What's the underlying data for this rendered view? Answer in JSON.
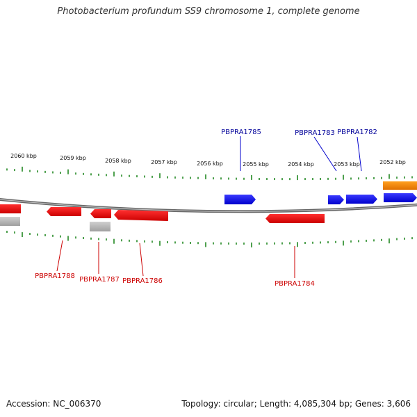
{
  "title": "Photobacterium profundum SS9 chromosome 1, complete genome",
  "footer": {
    "accession": "Accession: NC_006370",
    "summary": "Topology: circular; Length: 4,085,304 bp; Genes: 3,606"
  },
  "colors": {
    "forward": "#0000ee",
    "reverse": "#ee0000",
    "pseudo": "#bbbbbb",
    "rna": "#ff8800",
    "backbone": "#777777",
    "ticks": "#228822",
    "forward_label": "#000099",
    "reverse_label": "#cc0000"
  },
  "scale_labels": [
    "2060 kbp",
    "2059 kbp",
    "2058 kbp",
    "2057 kbp",
    "2056 kbp",
    "2055 kbp",
    "2054 kbp",
    "2053 kbp",
    "2052 kbp"
  ],
  "forward_genes": [
    {
      "id": "g1785",
      "label": "PBPRA1785",
      "strand": "+",
      "color": "blue"
    },
    {
      "id": "g1783",
      "label": "PBPRA1783",
      "strand": "+",
      "color": "blue"
    },
    {
      "id": "g1782",
      "label": "PBPRA1782",
      "strand": "+",
      "color": "blue"
    },
    {
      "id": "g_edge_fwd",
      "label": "",
      "strand": "+",
      "color": "blue"
    },
    {
      "id": "g_rna",
      "label": "",
      "strand": "+",
      "color": "orange"
    }
  ],
  "reverse_genes": [
    {
      "id": "g_edge_rev",
      "label": "",
      "strand": "-",
      "color": "red"
    },
    {
      "id": "g1788",
      "label": "PBPRA1788",
      "strand": "-",
      "color": "red"
    },
    {
      "id": "g1787",
      "label": "PBPRA1787",
      "strand": "-",
      "color": "red"
    },
    {
      "id": "g1786",
      "label": "PBPRA1786",
      "strand": "-",
      "color": "red"
    },
    {
      "id": "g1784",
      "label": "PBPRA1784",
      "strand": "-",
      "color": "red"
    },
    {
      "id": "g_pseudo1",
      "label": "",
      "strand": "-",
      "color": "grey"
    },
    {
      "id": "g_pseudo2",
      "label": "",
      "strand": "-",
      "color": "grey"
    }
  ]
}
